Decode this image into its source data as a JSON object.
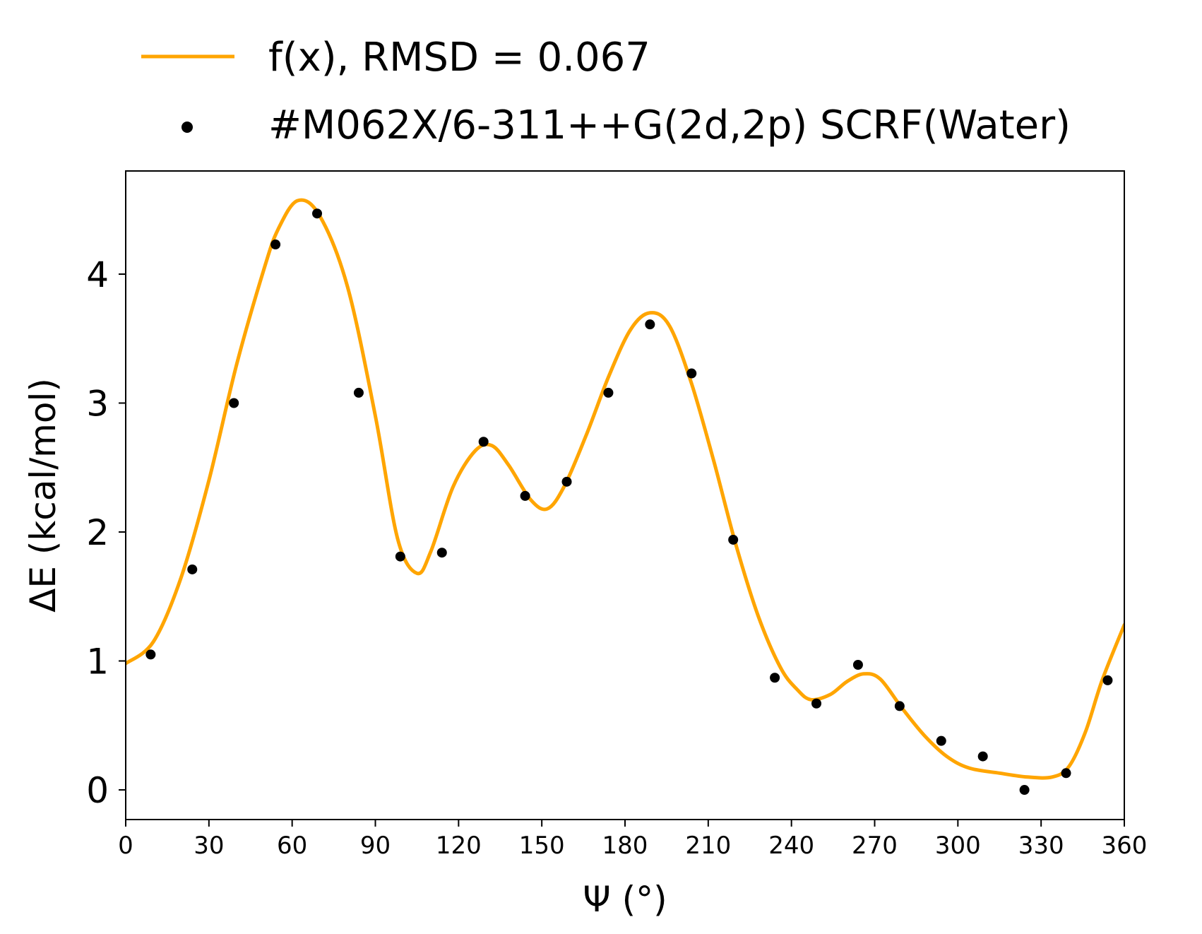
{
  "colors": {
    "fit": "#ffa500",
    "points": "#000000",
    "axes": "#000000",
    "background": "#ffffff"
  },
  "chart_data": {
    "type": "scatter",
    "title": "",
    "xlabel": "Ψ (°)",
    "ylabel": "ΔE (kcal/mol)",
    "xlim": [
      0,
      360
    ],
    "ylim": [
      -0.23,
      4.8
    ],
    "xticks": [
      0,
      30,
      60,
      90,
      120,
      150,
      180,
      210,
      240,
      270,
      300,
      330,
      360
    ],
    "yticks": [
      0,
      1,
      2,
      3,
      4
    ],
    "grid": false,
    "legend": {
      "placement": "top, above plot",
      "entries": [
        {
          "label": "f(x), RMSD = 0.067",
          "marker": "line",
          "series": "fit"
        },
        {
          "label": "#M062X/6-311++G(2d,2p) SCRF(Water)",
          "marker": "dot",
          "series": "points"
        }
      ]
    },
    "series": [
      {
        "name": "f(x), RMSD = 0.067",
        "kind": "line",
        "x": [
          0,
          10,
          20,
          30,
          40,
          50,
          55,
          62,
          70,
          80,
          90,
          98,
          105,
          110,
          118,
          126,
          132,
          138,
          146,
          152,
          158,
          166,
          174,
          182,
          189,
          196,
          204,
          212,
          220,
          228,
          236,
          242,
          247,
          254,
          260,
          266,
          272,
          280,
          288,
          296,
          304,
          315,
          325,
          334,
          340,
          346,
          352,
          360
        ],
        "y": [
          0.98,
          1.15,
          1.65,
          2.4,
          3.3,
          4.05,
          4.35,
          4.57,
          4.45,
          3.9,
          2.9,
          1.95,
          1.68,
          1.85,
          2.35,
          2.63,
          2.67,
          2.52,
          2.25,
          2.18,
          2.35,
          2.75,
          3.2,
          3.57,
          3.7,
          3.6,
          3.15,
          2.55,
          1.9,
          1.35,
          0.95,
          0.78,
          0.7,
          0.74,
          0.84,
          0.9,
          0.86,
          0.63,
          0.42,
          0.26,
          0.17,
          0.13,
          0.1,
          0.1,
          0.18,
          0.45,
          0.85,
          1.28
        ]
      },
      {
        "name": "#M062X/6-311++G(2d,2p) SCRF(Water)",
        "kind": "scatter",
        "x": [
          9,
          24,
          39,
          54,
          69,
          84,
          99,
          114,
          129,
          144,
          159,
          174,
          189,
          204,
          219,
          234,
          249,
          264,
          279,
          294,
          309,
          324,
          339,
          354
        ],
        "y": [
          1.05,
          1.71,
          3.0,
          4.23,
          4.47,
          3.08,
          1.81,
          1.84,
          2.7,
          2.28,
          2.39,
          3.08,
          3.61,
          3.23,
          1.94,
          0.87,
          0.67,
          0.97,
          0.65,
          0.38,
          0.26,
          0.0,
          0.13,
          0.85
        ]
      }
    ]
  }
}
